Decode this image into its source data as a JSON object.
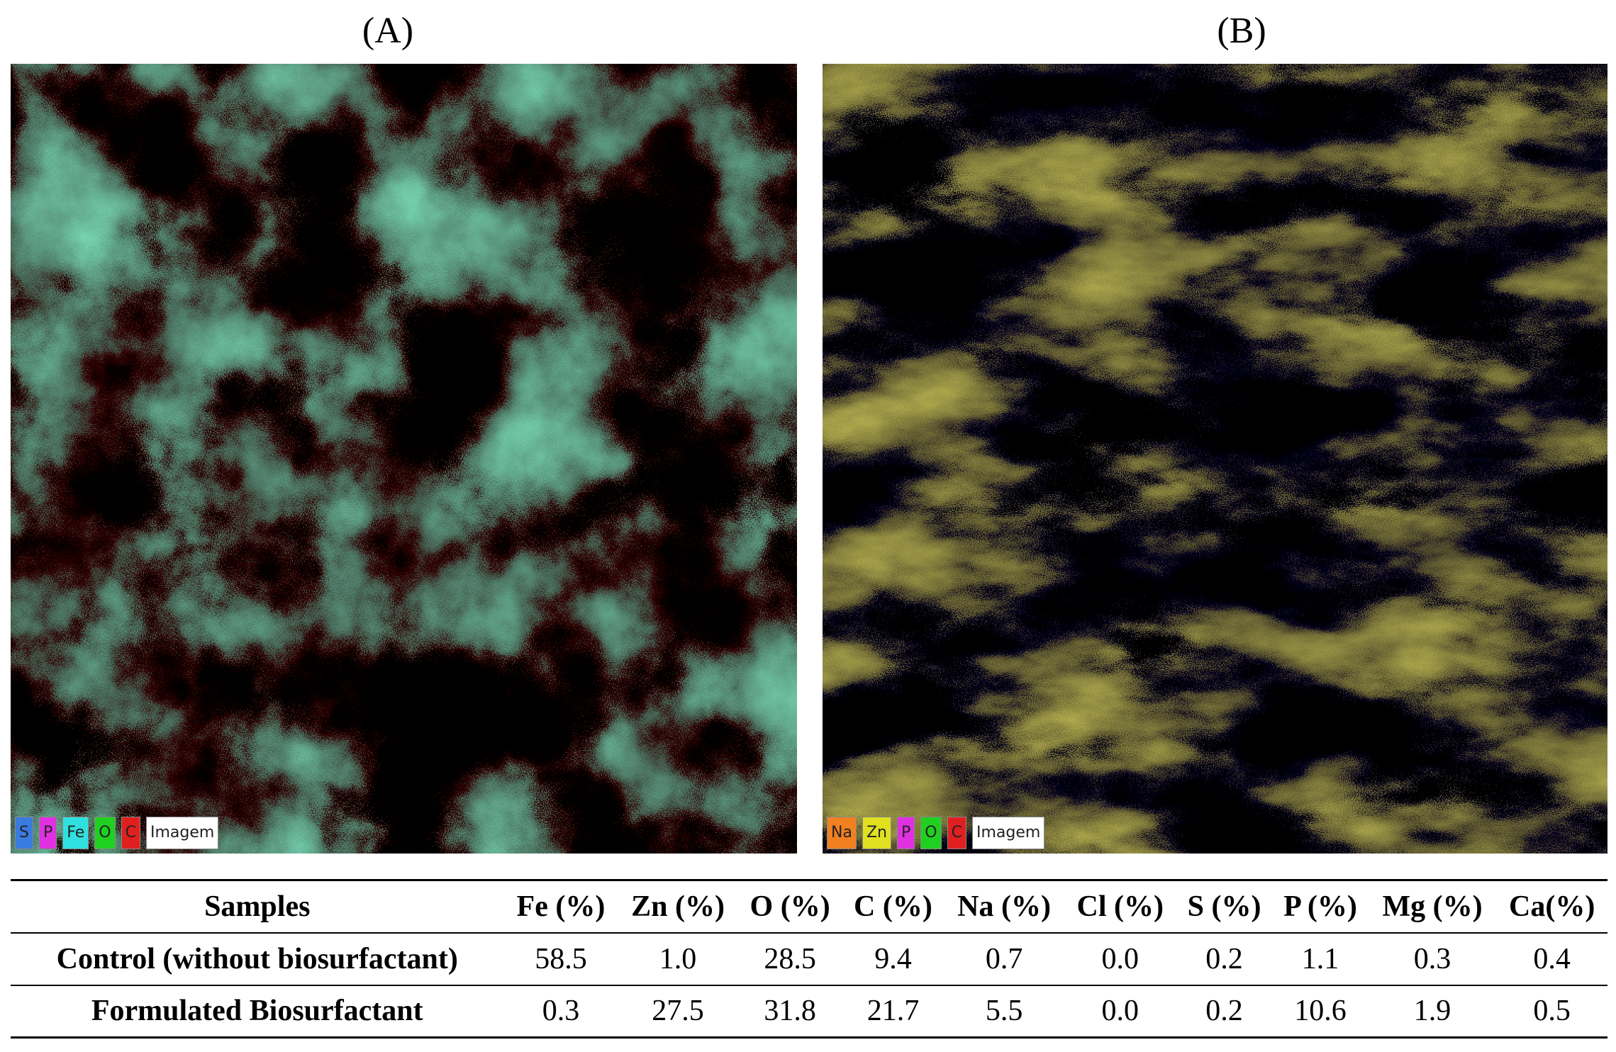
{
  "panels": [
    {
      "label": "(A)",
      "legend": [
        {
          "text": "S",
          "color": "#3a7be0"
        },
        {
          "text": "P",
          "color": "#e030e0"
        },
        {
          "text": "Fe",
          "color": "#30e0e0"
        },
        {
          "text": "O",
          "color": "#20d020"
        },
        {
          "text": "C",
          "color": "#e02020"
        },
        {
          "text": "Imagem",
          "color": "#ffffff"
        }
      ]
    },
    {
      "label": "(B)",
      "legend": [
        {
          "text": "Na",
          "color": "#f08020"
        },
        {
          "text": "Zn",
          "color": "#e0e020"
        },
        {
          "text": "P",
          "color": "#e030e0"
        },
        {
          "text": "O",
          "color": "#20d020"
        },
        {
          "text": "C",
          "color": "#e02020"
        },
        {
          "text": "Imagem",
          "color": "#ffffff"
        }
      ]
    }
  ],
  "table": {
    "header": [
      "Samples",
      "Fe (%)",
      "Zn (%)",
      "O (%)",
      "C (%)",
      "Na (%)",
      "Cl (%)",
      "S (%)",
      "P (%)",
      "Mg (%)",
      "Ca(%)"
    ],
    "rows": [
      [
        "Control (without biosurfactant)",
        "58.5",
        "1.0",
        "28.5",
        "9.4",
        "0.7",
        "0.0",
        "0.2",
        "1.1",
        "0.3",
        "0.4"
      ],
      [
        "Formulated Biosurfactant",
        "0.3",
        "27.5",
        "31.8",
        "21.7",
        "5.5",
        "0.0",
        "0.2",
        "10.6",
        "1.9",
        "0.5"
      ]
    ]
  }
}
